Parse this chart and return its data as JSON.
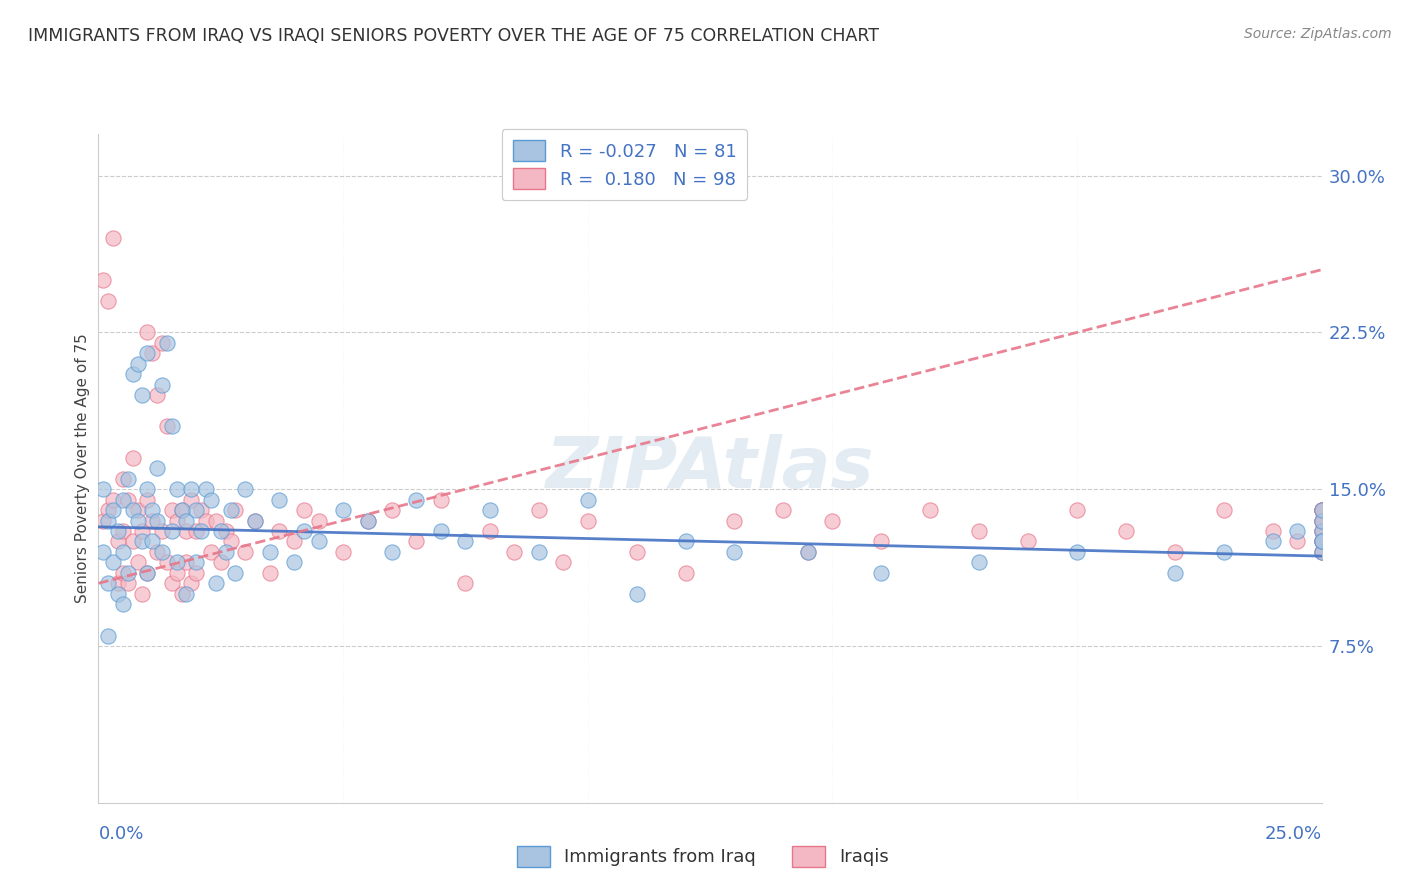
{
  "title": "IMMIGRANTS FROM IRAQ VS IRAQI SENIORS POVERTY OVER THE AGE OF 75 CORRELATION CHART",
  "source": "Source: ZipAtlas.com",
  "ylabel": "Seniors Poverty Over the Age of 75",
  "right_yticks": [
    7.5,
    15.0,
    22.5,
    30.0
  ],
  "right_ytick_labels": [
    "7.5%",
    "15.0%",
    "22.5%",
    "30.0%"
  ],
  "xlim": [
    0.0,
    25.0
  ],
  "ylim": [
    0.0,
    32.0
  ],
  "watermark": "ZIPAtlas",
  "blue_color": "#a8c4e0",
  "blue_edge": "#5b9bd5",
  "blue_line": "#4472c4",
  "pink_color": "#f4b8c4",
  "pink_edge": "#e8768a",
  "pink_line": "#e8768a",
  "R_blue": -0.027,
  "N_blue": 81,
  "R_pink": 0.18,
  "N_pink": 98,
  "label_blue": "Immigrants from Iraq",
  "label_pink": "Iraqis",
  "blue_trend_x": [
    0.0,
    25.0
  ],
  "blue_trend_y": [
    13.2,
    11.8
  ],
  "pink_trend_x": [
    0.0,
    25.0
  ],
  "pink_trend_y": [
    10.5,
    25.5
  ],
  "blue_x": [
    0.1,
    0.1,
    0.2,
    0.2,
    0.2,
    0.3,
    0.3,
    0.4,
    0.4,
    0.5,
    0.5,
    0.5,
    0.6,
    0.6,
    0.7,
    0.7,
    0.8,
    0.8,
    0.9,
    0.9,
    1.0,
    1.0,
    1.0,
    1.1,
    1.1,
    1.2,
    1.2,
    1.3,
    1.3,
    1.4,
    1.5,
    1.5,
    1.6,
    1.6,
    1.7,
    1.8,
    1.8,
    1.9,
    2.0,
    2.0,
    2.1,
    2.2,
    2.3,
    2.4,
    2.5,
    2.6,
    2.7,
    2.8,
    3.0,
    3.2,
    3.5,
    3.7,
    4.0,
    4.2,
    4.5,
    5.0,
    5.5,
    6.0,
    6.5,
    7.0,
    7.5,
    8.0,
    9.0,
    10.0,
    11.0,
    12.0,
    13.0,
    14.5,
    16.0,
    18.0,
    20.0,
    22.0,
    23.0,
    24.0,
    24.5,
    25.0,
    25.0,
    25.0,
    25.0,
    25.0,
    25.0
  ],
  "blue_y": [
    15.0,
    12.0,
    13.5,
    10.5,
    8.0,
    14.0,
    11.5,
    13.0,
    10.0,
    14.5,
    12.0,
    9.5,
    15.5,
    11.0,
    20.5,
    14.0,
    21.0,
    13.5,
    19.5,
    12.5,
    21.5,
    15.0,
    11.0,
    14.0,
    12.5,
    16.0,
    13.5,
    20.0,
    12.0,
    22.0,
    18.0,
    13.0,
    15.0,
    11.5,
    14.0,
    13.5,
    10.0,
    15.0,
    14.0,
    11.5,
    13.0,
    15.0,
    14.5,
    10.5,
    13.0,
    12.0,
    14.0,
    11.0,
    15.0,
    13.5,
    12.0,
    14.5,
    11.5,
    13.0,
    12.5,
    14.0,
    13.5,
    12.0,
    14.5,
    13.0,
    12.5,
    14.0,
    12.0,
    14.5,
    10.0,
    12.5,
    12.0,
    12.0,
    11.0,
    11.5,
    12.0,
    11.0,
    12.0,
    12.5,
    13.0,
    12.0,
    13.0,
    12.5,
    13.5,
    12.5,
    14.0
  ],
  "pink_x": [
    0.1,
    0.1,
    0.2,
    0.2,
    0.3,
    0.3,
    0.4,
    0.4,
    0.5,
    0.5,
    0.5,
    0.6,
    0.6,
    0.7,
    0.7,
    0.8,
    0.8,
    0.9,
    0.9,
    1.0,
    1.0,
    1.0,
    1.1,
    1.1,
    1.2,
    1.2,
    1.3,
    1.3,
    1.4,
    1.4,
    1.5,
    1.5,
    1.6,
    1.6,
    1.7,
    1.7,
    1.8,
    1.8,
    1.9,
    1.9,
    2.0,
    2.0,
    2.1,
    2.2,
    2.3,
    2.4,
    2.5,
    2.6,
    2.7,
    2.8,
    3.0,
    3.2,
    3.5,
    3.7,
    4.0,
    4.2,
    4.5,
    5.0,
    5.5,
    6.0,
    6.5,
    7.0,
    7.5,
    8.0,
    8.5,
    9.0,
    9.5,
    10.0,
    11.0,
    12.0,
    13.0,
    14.0,
    14.5,
    15.0,
    16.0,
    17.0,
    18.0,
    19.0,
    20.0,
    21.0,
    22.0,
    23.0,
    24.0,
    24.5,
    25.0,
    25.0,
    25.0,
    25.0,
    25.0,
    25.0,
    25.0,
    25.0,
    25.0,
    25.0,
    25.0,
    25.0,
    25.0,
    25.0
  ],
  "pink_y": [
    25.0,
    13.5,
    24.0,
    14.0,
    27.0,
    14.5,
    10.5,
    12.5,
    15.5,
    13.0,
    11.0,
    14.5,
    10.5,
    16.5,
    12.5,
    14.0,
    11.5,
    13.0,
    10.0,
    22.5,
    14.5,
    11.0,
    21.5,
    13.5,
    19.5,
    12.0,
    22.0,
    13.0,
    18.0,
    11.5,
    14.0,
    10.5,
    13.5,
    11.0,
    14.0,
    10.0,
    13.0,
    11.5,
    14.5,
    10.5,
    13.0,
    11.0,
    14.0,
    13.5,
    12.0,
    13.5,
    11.5,
    13.0,
    12.5,
    14.0,
    12.0,
    13.5,
    11.0,
    13.0,
    12.5,
    14.0,
    13.5,
    12.0,
    13.5,
    14.0,
    12.5,
    14.5,
    10.5,
    13.0,
    12.0,
    14.0,
    11.5,
    13.5,
    12.0,
    11.0,
    13.5,
    14.0,
    12.0,
    13.5,
    12.5,
    14.0,
    13.0,
    12.5,
    14.0,
    13.0,
    12.0,
    14.0,
    13.0,
    12.5,
    13.5,
    12.0,
    14.0,
    13.0,
    12.5,
    14.0,
    13.5,
    12.0,
    14.0,
    13.0,
    12.5,
    14.0,
    13.5,
    12.5
  ]
}
